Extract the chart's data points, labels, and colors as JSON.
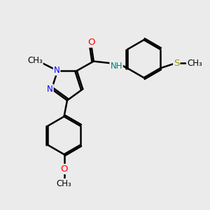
{
  "bg_color": "#ebebeb",
  "bond_color": "#000000",
  "bond_width": 1.8,
  "N_color": "#0000ff",
  "O_color": "#ff0000",
  "S_color": "#999900",
  "NH_color": "#008080",
  "C_color": "#000000",
  "font_size": 8.5,
  "fig_size": [
    3.0,
    3.0
  ],
  "dpi": 100,
  "xlim": [
    0,
    10
  ],
  "ylim": [
    0,
    10
  ]
}
